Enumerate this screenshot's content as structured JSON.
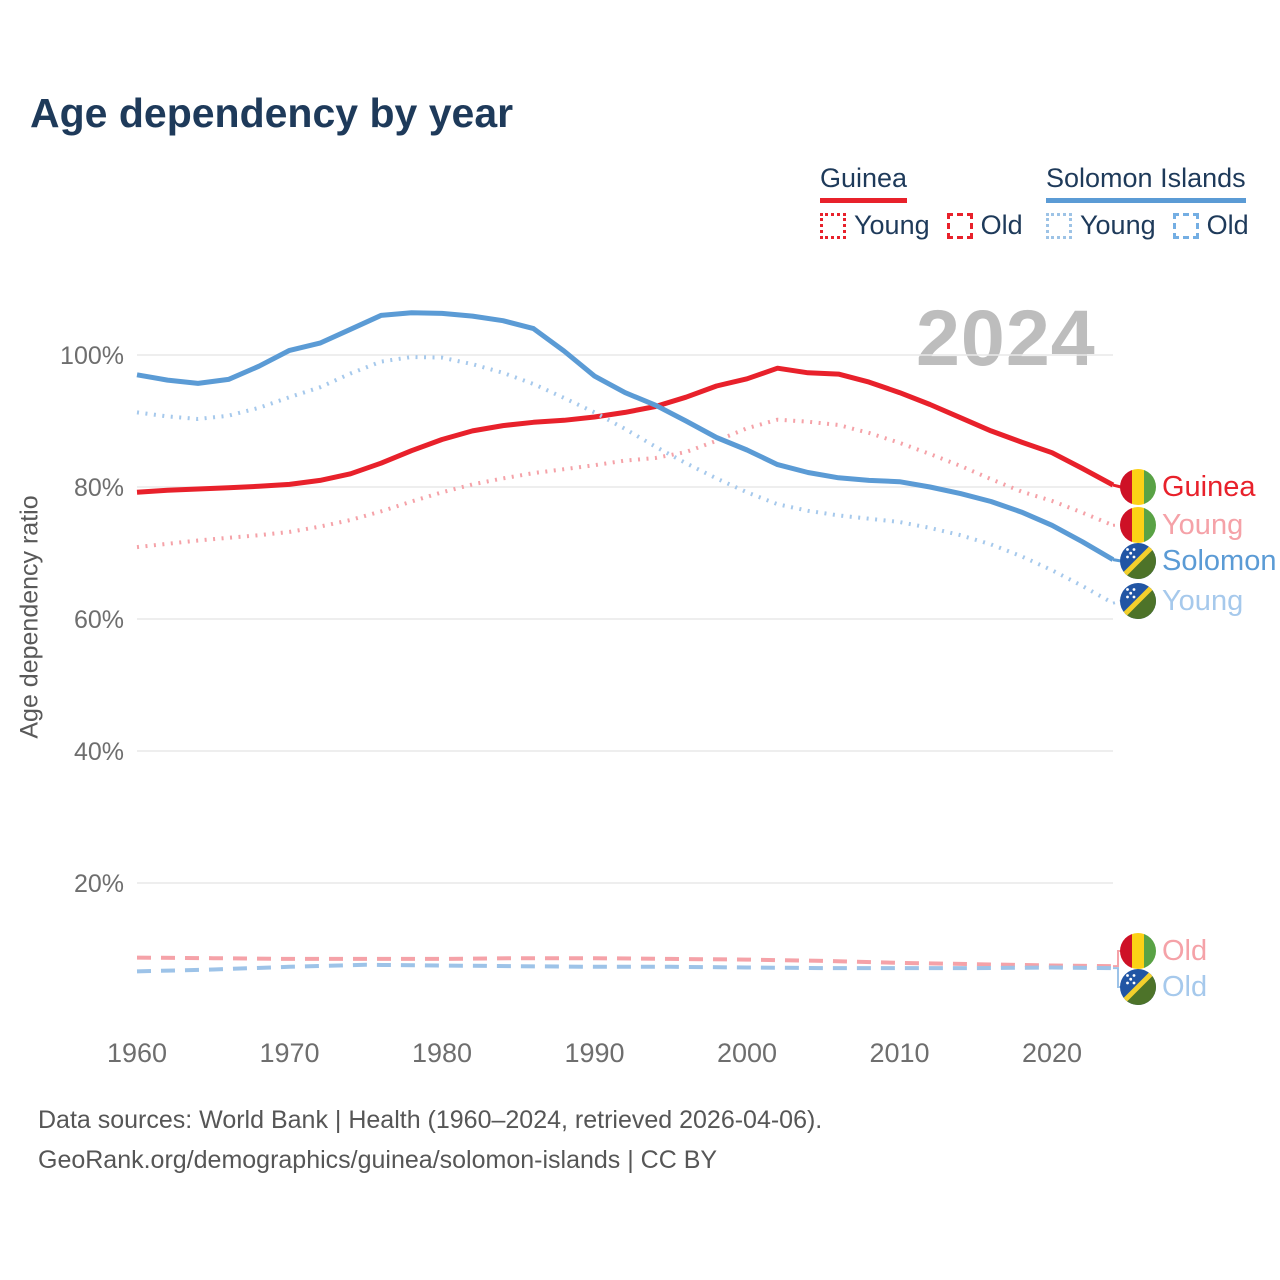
{
  "title": "Age dependency by year",
  "legend": {
    "guinea": {
      "title": "Guinea",
      "young_label": "Young",
      "old_label": "Old"
    },
    "solomon": {
      "title": "Solomon Islands",
      "young_label": "Young",
      "old_label": "Old"
    }
  },
  "watermark": "2024",
  "end_labels": {
    "guinea_total": "Guinea",
    "guinea_young": "Young",
    "solomon_total": "Solomon",
    "solomon_young": "Young",
    "guinea_old": "Old",
    "solomon_old": "Old"
  },
  "footer": {
    "line1": "Data sources: World Bank | Health (1960–2024, retrieved 2026-04-06).",
    "line2": "GeoRank.org/demographics/guinea/solomon-islands | CC BY"
  },
  "colors": {
    "title_text": "#1E3A5A",
    "guinea": "#E8212B",
    "guinea_light": "#F5A2A8",
    "solomon": "#5B9BD5",
    "solomon_light": "#A6C9EC",
    "grid": "#E9E9E9",
    "axis_text": "#6E6E6E",
    "watermark": "#BDBDBD"
  },
  "chart_data": {
    "type": "line",
    "title": "Age dependency by year",
    "xlabel": "",
    "ylabel": "Age dependency ratio",
    "xlim": [
      1960,
      2024
    ],
    "ylim": [
      0,
      110
    ],
    "grid": "horizontal",
    "legend_position": "top-right",
    "x_ticks": [
      {
        "value": 1960,
        "label": "1960"
      },
      {
        "value": 1970,
        "label": "1970"
      },
      {
        "value": 1980,
        "label": "1980"
      },
      {
        "value": 1990,
        "label": "1990"
      },
      {
        "value": 2000,
        "label": "2000"
      },
      {
        "value": 2010,
        "label": "2010"
      },
      {
        "value": 2020,
        "label": "2020"
      }
    ],
    "y_ticks": [
      {
        "value": 20,
        "label": "20%"
      },
      {
        "value": 40,
        "label": "40%"
      },
      {
        "value": 60,
        "label": "60%"
      },
      {
        "value": 80,
        "label": "80%"
      },
      {
        "value": 100,
        "label": "100%"
      }
    ],
    "series": [
      {
        "id": "guinea_total",
        "name": "Guinea (total)",
        "color": "#E8212B",
        "dash": "solid",
        "width": 5,
        "points": [
          [
            1960,
            79.2
          ],
          [
            1962,
            79.5
          ],
          [
            1964,
            79.7
          ],
          [
            1966,
            79.9
          ],
          [
            1968,
            80.1
          ],
          [
            1970,
            80.4
          ],
          [
            1972,
            81.0
          ],
          [
            1974,
            82.0
          ],
          [
            1976,
            83.6
          ],
          [
            1978,
            85.5
          ],
          [
            1980,
            87.2
          ],
          [
            1982,
            88.5
          ],
          [
            1984,
            89.3
          ],
          [
            1986,
            89.8
          ],
          [
            1988,
            90.1
          ],
          [
            1990,
            90.6
          ],
          [
            1992,
            91.3
          ],
          [
            1994,
            92.2
          ],
          [
            1996,
            93.6
          ],
          [
            1998,
            95.3
          ],
          [
            2000,
            96.4
          ],
          [
            2002,
            98.0
          ],
          [
            2004,
            97.3
          ],
          [
            2006,
            97.1
          ],
          [
            2008,
            95.9
          ],
          [
            2010,
            94.3
          ],
          [
            2012,
            92.5
          ],
          [
            2014,
            90.5
          ],
          [
            2016,
            88.5
          ],
          [
            2018,
            86.8
          ],
          [
            2020,
            85.2
          ],
          [
            2022,
            82.8
          ],
          [
            2024,
            80.3
          ]
        ]
      },
      {
        "id": "guinea_young",
        "name": "Guinea (young)",
        "color": "#F5A2A8",
        "dash": "dotted",
        "width": 4,
        "points": [
          [
            1960,
            70.9
          ],
          [
            1962,
            71.4
          ],
          [
            1964,
            71.9
          ],
          [
            1966,
            72.3
          ],
          [
            1968,
            72.7
          ],
          [
            1970,
            73.2
          ],
          [
            1972,
            74.0
          ],
          [
            1974,
            75.0
          ],
          [
            1976,
            76.3
          ],
          [
            1978,
            77.8
          ],
          [
            1980,
            79.2
          ],
          [
            1982,
            80.4
          ],
          [
            1984,
            81.3
          ],
          [
            1986,
            82.1
          ],
          [
            1988,
            82.7
          ],
          [
            1990,
            83.3
          ],
          [
            1992,
            84.0
          ],
          [
            1994,
            84.4
          ],
          [
            1996,
            85.3
          ],
          [
            1998,
            87.0
          ],
          [
            2000,
            88.9
          ],
          [
            2002,
            90.2
          ],
          [
            2004,
            89.9
          ],
          [
            2006,
            89.4
          ],
          [
            2008,
            88.2
          ],
          [
            2010,
            86.7
          ],
          [
            2012,
            85.0
          ],
          [
            2014,
            83.2
          ],
          [
            2016,
            81.2
          ],
          [
            2018,
            79.3
          ],
          [
            2020,
            77.9
          ],
          [
            2022,
            76.1
          ],
          [
            2024,
            74.2
          ]
        ]
      },
      {
        "id": "guinea_old",
        "name": "Guinea (old)",
        "color": "#F5A2A8",
        "dash": "dashed",
        "width": 4,
        "points": [
          [
            1960,
            8.7
          ],
          [
            1965,
            8.6
          ],
          [
            1970,
            8.5
          ],
          [
            1975,
            8.5
          ],
          [
            1980,
            8.5
          ],
          [
            1985,
            8.6
          ],
          [
            1990,
            8.6
          ],
          [
            1995,
            8.5
          ],
          [
            2000,
            8.4
          ],
          [
            2005,
            8.2
          ],
          [
            2010,
            7.9
          ],
          [
            2015,
            7.7
          ],
          [
            2020,
            7.5
          ],
          [
            2024,
            7.4
          ]
        ]
      },
      {
        "id": "solomon_total",
        "name": "Solomon Islands (total)",
        "color": "#5B9BD5",
        "dash": "solid",
        "width": 5,
        "points": [
          [
            1960,
            97.0
          ],
          [
            1962,
            96.2
          ],
          [
            1964,
            95.7
          ],
          [
            1966,
            96.3
          ],
          [
            1968,
            98.3
          ],
          [
            1970,
            100.7
          ],
          [
            1972,
            101.8
          ],
          [
            1974,
            103.9
          ],
          [
            1976,
            106.0
          ],
          [
            1978,
            106.4
          ],
          [
            1980,
            106.3
          ],
          [
            1982,
            105.9
          ],
          [
            1984,
            105.2
          ],
          [
            1986,
            104.0
          ],
          [
            1988,
            100.6
          ],
          [
            1990,
            96.8
          ],
          [
            1992,
            94.3
          ],
          [
            1994,
            92.4
          ],
          [
            1996,
            90.0
          ],
          [
            1998,
            87.5
          ],
          [
            2000,
            85.6
          ],
          [
            2002,
            83.4
          ],
          [
            2004,
            82.2
          ],
          [
            2006,
            81.4
          ],
          [
            2008,
            81.0
          ],
          [
            2010,
            80.8
          ],
          [
            2012,
            80.0
          ],
          [
            2014,
            79.0
          ],
          [
            2016,
            77.8
          ],
          [
            2018,
            76.2
          ],
          [
            2020,
            74.2
          ],
          [
            2022,
            71.7
          ],
          [
            2024,
            69.0
          ]
        ]
      },
      {
        "id": "solomon_young",
        "name": "Solomon Islands (young)",
        "color": "#A6C9EC",
        "dash": "dotted",
        "width": 4,
        "points": [
          [
            1960,
            91.3
          ],
          [
            1962,
            90.7
          ],
          [
            1964,
            90.3
          ],
          [
            1966,
            90.8
          ],
          [
            1968,
            92.0
          ],
          [
            1970,
            93.6
          ],
          [
            1972,
            95.1
          ],
          [
            1974,
            97.2
          ],
          [
            1976,
            99.0
          ],
          [
            1978,
            99.7
          ],
          [
            1980,
            99.6
          ],
          [
            1982,
            98.6
          ],
          [
            1984,
            97.3
          ],
          [
            1986,
            95.6
          ],
          [
            1988,
            93.5
          ],
          [
            1990,
            91.3
          ],
          [
            1992,
            88.8
          ],
          [
            1994,
            86.1
          ],
          [
            1996,
            83.6
          ],
          [
            1998,
            81.3
          ],
          [
            2000,
            79.2
          ],
          [
            2002,
            77.4
          ],
          [
            2004,
            76.4
          ],
          [
            2006,
            75.7
          ],
          [
            2008,
            75.2
          ],
          [
            2010,
            74.7
          ],
          [
            2012,
            73.8
          ],
          [
            2014,
            72.7
          ],
          [
            2016,
            71.3
          ],
          [
            2018,
            69.5
          ],
          [
            2020,
            67.4
          ],
          [
            2022,
            65.0
          ],
          [
            2024,
            62.4
          ]
        ]
      },
      {
        "id": "solomon_old",
        "name": "Solomon Islands (old)",
        "color": "#9DC3E8",
        "dash": "dashed",
        "width": 4,
        "points": [
          [
            1960,
            6.6
          ],
          [
            1965,
            6.9
          ],
          [
            1970,
            7.3
          ],
          [
            1975,
            7.6
          ],
          [
            1980,
            7.5
          ],
          [
            1985,
            7.4
          ],
          [
            1990,
            7.3
          ],
          [
            1995,
            7.3
          ],
          [
            2000,
            7.2
          ],
          [
            2005,
            7.1
          ],
          [
            2010,
            7.1
          ],
          [
            2015,
            7.1
          ],
          [
            2020,
            7.2
          ],
          [
            2024,
            7.1
          ]
        ]
      }
    ]
  }
}
